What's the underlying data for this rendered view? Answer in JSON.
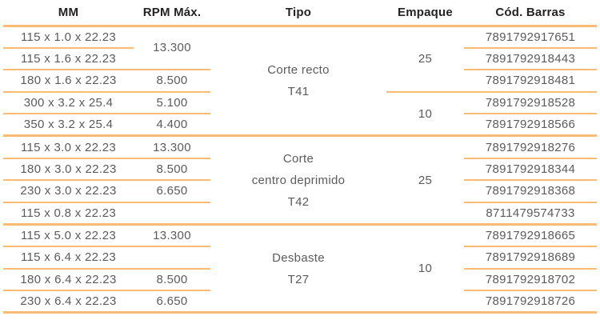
{
  "colors": {
    "line": "#FABC75",
    "header_text": "#232323",
    "body_text": "#5B5B5B"
  },
  "table": {
    "columns": [
      {
        "id": "mm",
        "label": "MM"
      },
      {
        "id": "rpm",
        "label": "RPM Máx."
      },
      {
        "id": "tipo",
        "label": "Tipo"
      },
      {
        "id": "empaque",
        "label": "Empaque"
      },
      {
        "id": "barras",
        "label": "Cód. Barras"
      }
    ],
    "sections": [
      {
        "tipo": [
          "Corte recto",
          "T41"
        ],
        "rpm_groups": [
          {
            "value": "13.300",
            "span": 2
          },
          {
            "value": "8.500",
            "span": 1
          },
          {
            "value": "5.100",
            "span": 1
          },
          {
            "value": "4.400",
            "span": 1
          }
        ],
        "empaque_groups": [
          {
            "value": "25",
            "span": 3
          },
          {
            "value": "10",
            "span": 2
          }
        ],
        "rows": [
          {
            "mm": "115 x 1.0 x 22.23",
            "barras": "7891792917651"
          },
          {
            "mm": "115 x 1.6 x 22.23",
            "barras": "7891792918443"
          },
          {
            "mm": "180 x 1.6 x 22.23",
            "barras": "7891792918481"
          },
          {
            "mm": "300 x 3.2 x 25.4",
            "barras": "7891792918528"
          },
          {
            "mm": "350 x 3.2 x 25.4",
            "barras": "7891792918566"
          }
        ]
      },
      {
        "tipo": [
          "Corte",
          "centro deprimido",
          "T42"
        ],
        "rpm_groups": [
          {
            "value": "13.300",
            "span": 1
          },
          {
            "value": "8.500",
            "span": 1
          },
          {
            "value": "6.650",
            "span": 1
          },
          {
            "value": "",
            "span": 1
          }
        ],
        "empaque_groups": [
          {
            "value": "25",
            "span": 4
          }
        ],
        "rows": [
          {
            "mm": "115 x 3.0 x 22.23",
            "barras": "7891792918276"
          },
          {
            "mm": "180 x 3.0 x 22.23",
            "barras": "7891792918344"
          },
          {
            "mm": "230 x 3.0 x 22.23",
            "barras": "7891792918368"
          },
          {
            "mm": "115 x 0.8 x 22.23",
            "barras": "8711479574733"
          }
        ]
      },
      {
        "tipo": [
          "Desbaste",
          "T27"
        ],
        "rpm_groups": [
          {
            "value": "13.300",
            "span": 1
          },
          {
            "value": "",
            "span": 1
          },
          {
            "value": "8.500",
            "span": 1
          },
          {
            "value": "6.650",
            "span": 1
          }
        ],
        "empaque_groups": [
          {
            "value": "10",
            "span": 4
          }
        ],
        "rows": [
          {
            "mm": "115 x 5.0 x 22.23",
            "barras": "7891792918665"
          },
          {
            "mm": "115 x 6.4 x 22.23",
            "barras": "7891792918689"
          },
          {
            "mm": "180 x 6.4 x 22.23",
            "barras": "7891792918702"
          },
          {
            "mm": "230 x 6.4 x 22.23",
            "barras": "7891792918726"
          }
        ]
      }
    ]
  }
}
